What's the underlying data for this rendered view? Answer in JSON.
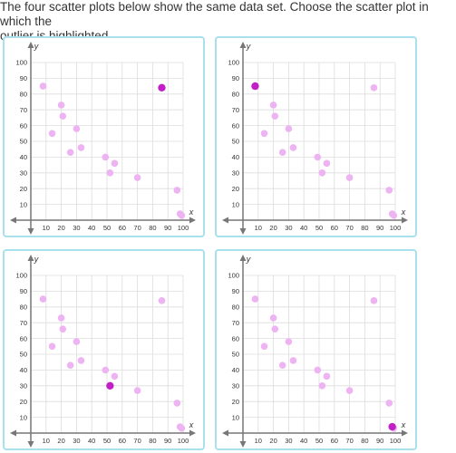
{
  "prompt": {
    "line1": "The four scatter plots below show the same data set. Choose the scatter plot in which the",
    "line2": "outlier is highlighted."
  },
  "colors": {
    "point": "#eeb3f2",
    "highlight": "#c21fc7",
    "border": "#a8e0ee",
    "grid": "#dddddd",
    "axis": "#777777"
  },
  "chart_data": [
    {
      "type": "scatter",
      "xlabel": "x",
      "ylabel": "y",
      "xlim": [
        0,
        100
      ],
      "ylim": [
        0,
        100
      ],
      "xticks": [
        10,
        20,
        30,
        40,
        50,
        60,
        70,
        80,
        90,
        100
      ],
      "yticks": [
        10,
        20,
        30,
        40,
        50,
        60,
        70,
        80,
        90,
        100
      ],
      "points": [
        [
          8,
          85
        ],
        [
          14,
          55
        ],
        [
          20,
          73
        ],
        [
          21,
          66
        ],
        [
          26,
          43
        ],
        [
          30,
          58
        ],
        [
          33,
          46
        ],
        [
          49,
          40
        ],
        [
          52,
          30
        ],
        [
          55,
          36
        ],
        [
          70,
          27
        ],
        [
          86,
          84
        ],
        [
          96,
          19
        ],
        [
          98,
          4
        ],
        [
          99,
          3
        ]
      ],
      "highlighted": [
        86,
        84
      ]
    },
    {
      "type": "scatter",
      "xlabel": "x",
      "ylabel": "y",
      "xlim": [
        0,
        100
      ],
      "ylim": [
        0,
        100
      ],
      "xticks": [
        10,
        20,
        30,
        40,
        50,
        60,
        70,
        80,
        90,
        100
      ],
      "yticks": [
        10,
        20,
        30,
        40,
        50,
        60,
        70,
        80,
        90,
        100
      ],
      "points": [
        [
          8,
          85
        ],
        [
          14,
          55
        ],
        [
          20,
          73
        ],
        [
          21,
          66
        ],
        [
          26,
          43
        ],
        [
          30,
          58
        ],
        [
          33,
          46
        ],
        [
          49,
          40
        ],
        [
          52,
          30
        ],
        [
          55,
          36
        ],
        [
          70,
          27
        ],
        [
          86,
          84
        ],
        [
          96,
          19
        ],
        [
          98,
          4
        ],
        [
          99,
          3
        ]
      ],
      "highlighted": [
        8,
        85
      ]
    },
    {
      "type": "scatter",
      "xlabel": "x",
      "ylabel": "y",
      "xlim": [
        0,
        100
      ],
      "ylim": [
        0,
        100
      ],
      "xticks": [
        10,
        20,
        30,
        40,
        50,
        60,
        70,
        80,
        90,
        100
      ],
      "yticks": [
        10,
        20,
        30,
        40,
        50,
        60,
        70,
        80,
        90,
        100
      ],
      "points": [
        [
          8,
          85
        ],
        [
          14,
          55
        ],
        [
          20,
          73
        ],
        [
          21,
          66
        ],
        [
          26,
          43
        ],
        [
          30,
          58
        ],
        [
          33,
          46
        ],
        [
          49,
          40
        ],
        [
          52,
          30
        ],
        [
          55,
          36
        ],
        [
          70,
          27
        ],
        [
          86,
          84
        ],
        [
          96,
          19
        ],
        [
          98,
          4
        ],
        [
          99,
          3
        ]
      ],
      "highlighted": [
        52,
        30
      ]
    },
    {
      "type": "scatter",
      "xlabel": "x",
      "ylabel": "y",
      "xlim": [
        0,
        100
      ],
      "ylim": [
        0,
        100
      ],
      "xticks": [
        10,
        20,
        30,
        40,
        50,
        60,
        70,
        80,
        90,
        100
      ],
      "yticks": [
        10,
        20,
        30,
        40,
        50,
        60,
        70,
        80,
        90,
        100
      ],
      "points": [
        [
          8,
          85
        ],
        [
          14,
          55
        ],
        [
          20,
          73
        ],
        [
          21,
          66
        ],
        [
          26,
          43
        ],
        [
          30,
          58
        ],
        [
          33,
          46
        ],
        [
          49,
          40
        ],
        [
          52,
          30
        ],
        [
          55,
          36
        ],
        [
          70,
          27
        ],
        [
          86,
          84
        ],
        [
          96,
          19
        ],
        [
          98,
          4
        ],
        [
          99,
          3
        ]
      ],
      "highlighted": [
        98,
        4
      ]
    }
  ]
}
